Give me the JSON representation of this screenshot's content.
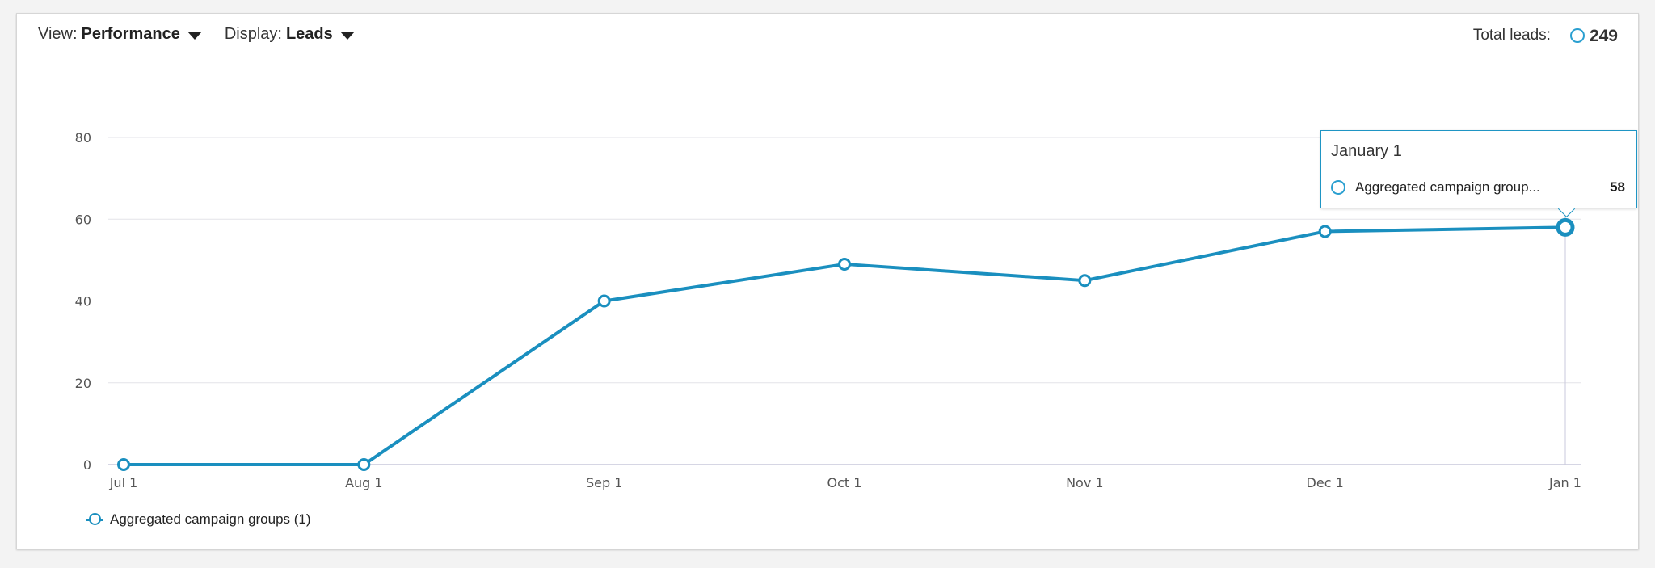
{
  "toolbar": {
    "view_label": "View:",
    "view_value": "Performance",
    "display_label": "Display:",
    "display_value": "Leads"
  },
  "summary": {
    "total_label": "Total leads:",
    "total_value": "249"
  },
  "tooltip": {
    "title": "January 1",
    "series_name": "Aggregated campaign group...",
    "value": "58"
  },
  "legend": {
    "label": "Aggregated campaign groups (1)"
  },
  "colors": {
    "series": "#1a8fbf",
    "accent": "#2a9fd0",
    "grid": "#e3e3e8",
    "axis": "#c9c9dc"
  },
  "chart_data": {
    "type": "line",
    "x": [
      "Jul 1",
      "Aug 1",
      "Sep 1",
      "Oct 1",
      "Nov 1",
      "Dec 1",
      "Jan 1"
    ],
    "series": [
      {
        "name": "Aggregated campaign groups (1)",
        "values": [
          0,
          0,
          40,
          49,
          45,
          57,
          58
        ]
      }
    ],
    "ylim": [
      0,
      80
    ],
    "yticks": [
      0,
      20,
      40,
      60,
      80
    ],
    "grid": true,
    "legend": "bottom-left",
    "highlighted_index": 6
  }
}
